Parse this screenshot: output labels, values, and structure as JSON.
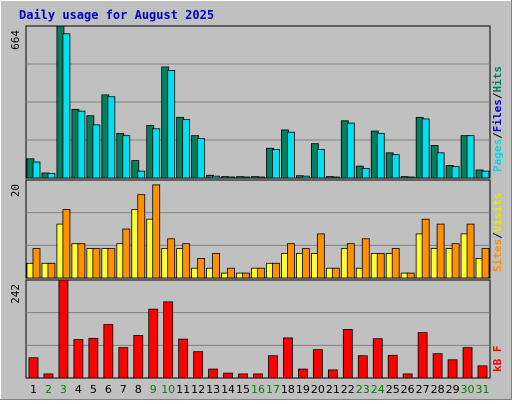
{
  "chart_data": {
    "type": "bar",
    "title": "Daily usage for August 2025",
    "categories": [
      "1",
      "2",
      "3",
      "4",
      "5",
      "6",
      "7",
      "8",
      "9",
      "10",
      "11",
      "12",
      "13",
      "14",
      "15",
      "16",
      "17",
      "18",
      "19",
      "20",
      "21",
      "22",
      "23",
      "24",
      "25",
      "26",
      "27",
      "28",
      "29",
      "30",
      "31"
    ],
    "weekend_days": [
      "2",
      "3",
      "9",
      "10",
      "16",
      "17",
      "23",
      "24",
      "30",
      "31"
    ],
    "panels": [
      {
        "name": "hits_files_pages",
        "ymax_label": "664",
        "ylim": [
          0,
          664
        ],
        "legend": [
          "Pages",
          "/",
          "Files",
          "/",
          "Hits"
        ],
        "series": [
          {
            "name": "Pages",
            "color": "#008080",
            "values": [
              0,
              0,
              0,
              0,
              0,
              0,
              0,
              0,
              0,
              0,
              0,
              0,
              0,
              0,
              0,
              0,
              0,
              0,
              0,
              0,
              0,
              0,
              0,
              0,
              0,
              0,
              0,
              0,
              0,
              0,
              0
            ]
          },
          {
            "name": "Hits",
            "color": "#008060",
            "values": [
              84,
              22,
              664,
              300,
              272,
              363,
              195,
              76,
              230,
              485,
              265,
              185,
              12,
              6,
              6,
              6,
              130,
              210,
              10,
              150,
              6,
              250,
              52,
              205,
              110,
              6,
              265,
              142,
              55,
              185,
              35
            ]
          },
          {
            "name": "Files",
            "color": "#00E0F0",
            "values": [
              70,
              20,
              630,
              292,
              232,
              355,
              185,
              30,
              215,
              470,
              255,
              172,
              8,
              4,
              4,
              4,
              125,
              200,
              8,
              125,
              4,
              240,
              42,
              195,
              102,
              4,
              258,
              110,
              50,
              185,
              30
            ]
          }
        ]
      },
      {
        "name": "visits_sites",
        "ymax_label": "20",
        "ylim": [
          0,
          20
        ],
        "legend": [
          "Sites",
          "/",
          "Visits"
        ],
        "series": [
          {
            "name": "Visits",
            "color": "#FFFF33",
            "values": [
              3,
              3,
              11,
              7,
              6,
              6,
              7,
              14,
              12,
              6,
              6,
              2,
              2,
              1,
              1,
              2,
              3,
              5,
              5,
              5,
              2,
              6,
              2,
              5,
              5,
              1,
              9,
              6,
              6,
              9,
              4
            ]
          },
          {
            "name": "Sites",
            "color": "#FF9000",
            "values": [
              6,
              3,
              14,
              7,
              6,
              6,
              10,
              17,
              19,
              8,
              7,
              4,
              5,
              2,
              1,
              2,
              3,
              7,
              6,
              9,
              2,
              7,
              8,
              5,
              6,
              1,
              12,
              11,
              7,
              11,
              6
            ]
          }
        ]
      },
      {
        "name": "kbytes",
        "ymax_label": "242",
        "ylim": [
          0,
          242
        ],
        "legend": [
          "kB F"
        ],
        "series": [
          {
            "name": "kB F",
            "color": "#FF0000",
            "values": [
              50,
              10,
              242,
              95,
              98,
              132,
              75,
              105,
              170,
              188,
              96,
              65,
              22,
              12,
              10,
              10,
              55,
              99,
              22,
              70,
              20,
              120,
              55,
              97,
              56,
              10,
              112,
              60,
              45,
              75,
              30
            ]
          }
        ]
      }
    ]
  }
}
